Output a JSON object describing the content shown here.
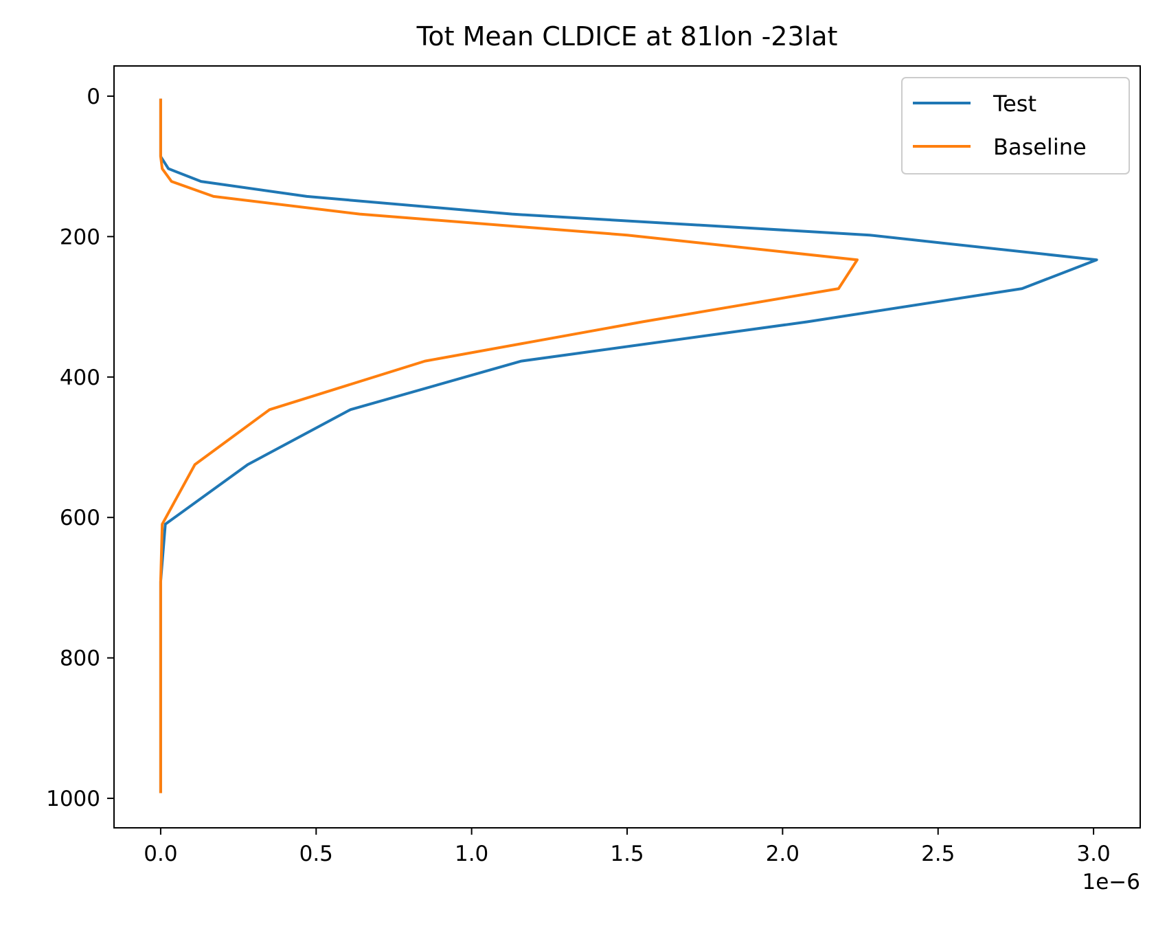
{
  "chart_data": {
    "type": "line",
    "title": "Tot Mean CLDICE at 81lon -23lat",
    "xlabel": "",
    "ylabel": "",
    "x_offset_text": "1e−6",
    "xlim": [
      -0.15,
      3.15
    ],
    "ylim": [
      1042,
      -43
    ],
    "y_inverted": true,
    "x_ticks": [
      0.0,
      0.5,
      1.0,
      1.5,
      2.0,
      2.5,
      3.0
    ],
    "x_tick_labels": [
      "0.0",
      "0.5",
      "1.0",
      "1.5",
      "2.0",
      "2.5",
      "3.0"
    ],
    "y_ticks": [
      0,
      200,
      400,
      600,
      800,
      1000
    ],
    "y_tick_labels": [
      "0",
      "200",
      "400",
      "600",
      "800",
      "1000"
    ],
    "grid": false,
    "legend": {
      "position": "top-right",
      "entries": [
        "Test",
        "Baseline"
      ]
    },
    "series": [
      {
        "name": "Test",
        "color": "#1f77b4",
        "points": [
          [
            0.0,
            3.6
          ],
          [
            0.0,
            7.6
          ],
          [
            0.0,
            14.4
          ],
          [
            0.0,
            24.6
          ],
          [
            0.0,
            38.3
          ],
          [
            0.0,
            54.6
          ],
          [
            0.0,
            72.0
          ],
          [
            0.0,
            86.0
          ],
          [
            0.025,
            103.3
          ],
          [
            0.13,
            121.5
          ],
          [
            0.47,
            142.8
          ],
          [
            1.13,
            168.0
          ],
          [
            2.28,
            197.9
          ],
          [
            3.01,
            233.1
          ],
          [
            2.77,
            274.1
          ],
          [
            2.08,
            321.3
          ],
          [
            1.16,
            377.3
          ],
          [
            0.61,
            446.5
          ],
          [
            0.28,
            524.7
          ],
          [
            0.015,
            609.6
          ],
          [
            0.0,
            691.4
          ],
          [
            0.0,
            763.4
          ],
          [
            0.0,
            820.9
          ],
          [
            0.0,
            859.5
          ],
          [
            0.0,
            887.0
          ],
          [
            0.0,
            912.6
          ],
          [
            0.0,
            936.2
          ],
          [
            0.0,
            957.5
          ],
          [
            0.0,
            976.3
          ],
          [
            0.0,
            992.6
          ]
        ]
      },
      {
        "name": "Baseline",
        "color": "#ff7f0e",
        "points": [
          [
            0.0,
            3.6
          ],
          [
            0.0,
            7.6
          ],
          [
            0.0,
            14.4
          ],
          [
            0.0,
            24.6
          ],
          [
            0.0,
            38.3
          ],
          [
            0.0,
            54.6
          ],
          [
            0.0,
            72.0
          ],
          [
            0.0,
            86.0
          ],
          [
            0.005,
            103.3
          ],
          [
            0.035,
            121.5
          ],
          [
            0.17,
            142.8
          ],
          [
            0.64,
            168.0
          ],
          [
            1.5,
            197.9
          ],
          [
            2.24,
            233.1
          ],
          [
            2.18,
            274.1
          ],
          [
            1.55,
            321.3
          ],
          [
            0.85,
            377.3
          ],
          [
            0.35,
            446.5
          ],
          [
            0.11,
            524.7
          ],
          [
            0.005,
            609.6
          ],
          [
            0.0,
            691.4
          ],
          [
            0.0,
            763.4
          ],
          [
            0.0,
            820.9
          ],
          [
            0.0,
            859.5
          ],
          [
            0.0,
            887.0
          ],
          [
            0.0,
            912.6
          ],
          [
            0.0,
            936.2
          ],
          [
            0.0,
            957.5
          ],
          [
            0.0,
            976.3
          ],
          [
            0.0,
            992.6
          ]
        ]
      }
    ]
  }
}
